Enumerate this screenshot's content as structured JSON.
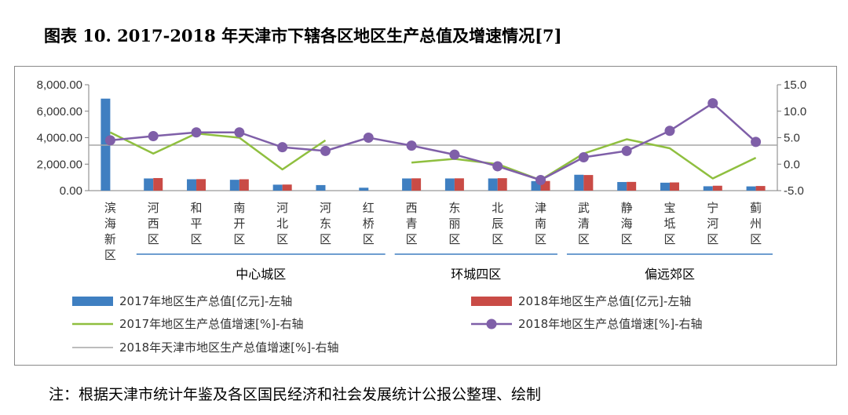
{
  "page": {
    "title": "图表 10. 2017-2018 年天津市下辖各区地区生产总值及增速情况[7]",
    "note": "注：根据天津市统计年鉴及各区国民经济和社会发展统计公报公整理、绘制"
  },
  "chart_data": {
    "type": "bar",
    "categories": [
      "滨海新区",
      "河西区",
      "和平区",
      "南开区",
      "河北区",
      "河东区",
      "红桥区",
      "西青区",
      "东丽区",
      "北辰区",
      "津南区",
      "武清区",
      "静海区",
      "宝坻区",
      "宁河区",
      "蓟州区"
    ],
    "groups": [
      {
        "label": "中心城区",
        "start": 1,
        "end": 6
      },
      {
        "label": "环城四区",
        "start": 7,
        "end": 10
      },
      {
        "label": "偏远郊区",
        "start": 11,
        "end": 15
      }
    ],
    "y_left": {
      "ylim": [
        0,
        8000
      ],
      "ticks": [
        "0.00",
        "2,000.00",
        "4,000.00",
        "6,000.00",
        "8,000.00"
      ],
      "tick_values": [
        0,
        2000,
        4000,
        6000,
        8000
      ]
    },
    "y_right": {
      "ylim": [
        -5,
        15
      ],
      "ticks": [
        "-5.0",
        "0.0",
        "5.0",
        "10.0",
        "15.0"
      ],
      "tick_values": [
        -5,
        0,
        5,
        10,
        15
      ]
    },
    "series": [
      {
        "name": "2017年地区生产总值[亿元]-左轴",
        "type": "bar",
        "axis": "left",
        "color": "#3f7fc1",
        "values": [
          6950,
          920,
          860,
          820,
          450,
          420,
          220,
          920,
          920,
          920,
          720,
          1200,
          650,
          600,
          330,
          320
        ]
      },
      {
        "name": "2018年地区生产总值[亿元]-左轴",
        "type": "bar",
        "axis": "left",
        "color": "#c94b46",
        "values": [
          null,
          950,
          870,
          860,
          460,
          null,
          null,
          930,
          930,
          940,
          730,
          1180,
          660,
          620,
          370,
          350
        ]
      },
      {
        "name": "2017年地区生产总值增速[%]-右轴",
        "type": "line",
        "axis": "right",
        "color": "#8fbf3f",
        "values": [
          6.0,
          2.0,
          5.8,
          5.0,
          -1.0,
          4.5,
          null,
          0.3,
          1.0,
          0.0,
          -3.0,
          2.0,
          4.7,
          3.0,
          -2.7,
          1.2
        ]
      },
      {
        "name": "2018年地区生产总值增速[%]-右轴",
        "type": "line",
        "axis": "right",
        "color": "#7f5fa8",
        "marker": "circle",
        "values": [
          4.5,
          5.3,
          6.0,
          6.0,
          3.2,
          2.5,
          5.0,
          3.5,
          1.8,
          -0.4,
          -3.0,
          1.3,
          2.5,
          6.3,
          11.5,
          4.2
        ]
      },
      {
        "name": "2018年天津市地区生产总值增速[%]-右轴",
        "type": "hline",
        "axis": "right",
        "color": "#a6a6a6",
        "value": 3.6
      }
    ]
  }
}
